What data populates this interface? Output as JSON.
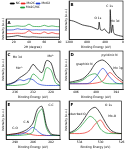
{
  "chart_data": [
    {
      "type": "line",
      "title": "A",
      "x_label": "2θ (degree)",
      "y_label": "Intensity (a.u.)",
      "x": [
        10,
        15,
        20,
        25,
        30,
        35,
        40,
        45,
        50,
        55,
        60,
        65,
        70,
        75,
        80
      ],
      "series": [
        {
          "name": "NC",
          "color": "#000000",
          "values": [
            12,
            13,
            15,
            18,
            14,
            12,
            11,
            12,
            11,
            10,
            10,
            10,
            10,
            10,
            10
          ]
        },
        {
          "name": "Mo2C",
          "color": "#e8251f",
          "values": [
            28,
            28,
            29,
            30,
            29,
            31,
            42,
            30,
            29,
            28,
            36,
            28,
            33,
            28,
            27
          ]
        },
        {
          "name": "MoO2",
          "color": "#2040d0",
          "values": [
            46,
            46,
            47,
            52,
            48,
            50,
            47,
            46,
            47,
            46,
            47,
            46,
            46,
            46,
            46
          ]
        },
        {
          "name": "Mo2C/NC",
          "color": "#1e9e3a",
          "values": [
            63,
            63,
            64,
            66,
            64,
            65,
            74,
            64,
            63,
            63,
            69,
            63,
            66,
            63,
            62
          ]
        }
      ],
      "xlim": [
        10,
        80
      ],
      "xticks": [
        20,
        40,
        60,
        80
      ],
      "ylim": [
        0,
        100
      ],
      "legend": "top",
      "grid": false,
      "tick_labels": "x"
    },
    {
      "type": "line",
      "title": "B",
      "x_label": "Binding Energy (eV)",
      "y_label": "Intensity (a.u.)",
      "x": [
        1200,
        1100,
        1000,
        900,
        800,
        700,
        600,
        550,
        531,
        500,
        450,
        413,
        400,
        350,
        300,
        284,
        260,
        230,
        200,
        100,
        0
      ],
      "series": [
        {
          "color": "#000000",
          "values": [
            40,
            38,
            34,
            30,
            28,
            26,
            22,
            21,
            36,
            20,
            19,
            22,
            20,
            15,
            13,
            62,
            14,
            30,
            12,
            8,
            6
          ]
        }
      ],
      "annotations": [
        {
          "text": "O 1s",
          "x": 560,
          "y": 45
        },
        {
          "text": "C 1s",
          "x": 300,
          "y": 70
        },
        {
          "text": "Mo 3d",
          "x": 180,
          "y": 38
        }
      ],
      "xlim": [
        1200,
        0
      ],
      "xticks": [
        1200,
        800,
        400,
        0
      ],
      "ylim": [
        0,
        80
      ],
      "grid": false,
      "tick_labels": "x"
    },
    {
      "type": "line",
      "title": "C",
      "x_label": "Binding Energy (eV)",
      "y_label": "Intensity (a.u.)",
      "x": [
        238,
        237,
        236,
        235,
        234,
        233,
        232,
        231,
        230,
        229,
        228,
        227,
        226
      ],
      "series": [
        {
          "color": "#000000",
          "values": [
            10,
            12,
            16,
            24,
            30,
            38,
            52,
            42,
            35,
            60,
            55,
            25,
            12
          ]
        },
        {
          "color": "#1e9e3a",
          "values": [
            8,
            8,
            8,
            9,
            10,
            14,
            32,
            25,
            18,
            45,
            40,
            14,
            8
          ]
        },
        {
          "color": "#2040d0",
          "values": [
            9,
            11,
            15,
            20,
            18,
            22,
            20,
            12,
            9,
            8,
            8,
            8,
            8
          ]
        }
      ],
      "annotations": [
        {
          "text": "Mo 3d",
          "x": 235.5,
          "y": 68
        },
        {
          "text": "Mo²⁺",
          "x": 228,
          "y": 70
        },
        {
          "text": "Mo⁶⁺",
          "x": 235,
          "y": 45
        }
      ],
      "xlim": [
        238,
        226
      ],
      "xticks": [
        236,
        232,
        228
      ],
      "ylim": [
        0,
        80
      ],
      "grid": false,
      "tick_labels": "x"
    },
    {
      "type": "line",
      "title": "D",
      "x_label": "Binding Energy (eV)",
      "y_label": "Intensity (a.u.)",
      "x": [
        408,
        406,
        404,
        402,
        400,
        398,
        396,
        394,
        392
      ],
      "series": [
        {
          "color": "#000000",
          "values": [
            10,
            12,
            15,
            24,
            38,
            42,
            34,
            20,
            12
          ]
        },
        {
          "color": "#1e9e3a",
          "values": [
            9,
            10,
            13,
            20,
            22,
            10,
            8,
            8,
            8
          ]
        },
        {
          "color": "#2040d0",
          "values": [
            8,
            8,
            8,
            9,
            18,
            30,
            18,
            9,
            8
          ]
        },
        {
          "color": "#e8251f",
          "values": [
            8,
            8,
            8,
            8,
            9,
            12,
            24,
            16,
            9
          ]
        }
      ],
      "annotations": [
        {
          "text": "graphitic N",
          "x": 403.5,
          "y": 36
        },
        {
          "text": "pyridinic N",
          "x": 396,
          "y": 49
        },
        {
          "text": "Mo 3p",
          "x": 393.5,
          "y": 30
        }
      ],
      "xlim": [
        408,
        392
      ],
      "xticks": [
        406,
        400,
        394
      ],
      "ylim": [
        0,
        55
      ],
      "grid": false,
      "tick_labels": "x"
    },
    {
      "type": "line",
      "title": "E",
      "x_label": "Binding Energy (eV)",
      "y_label": "Intensity (a.u.)",
      "x": [
        292,
        291,
        290,
        289,
        288,
        287,
        286,
        285,
        284,
        283,
        282,
        281,
        280
      ],
      "series": [
        {
          "color": "#000000",
          "values": [
            8,
            9,
            10,
            12,
            15,
            20,
            30,
            55,
            60,
            25,
            10,
            8,
            7
          ]
        },
        {
          "color": "#1e9e3a",
          "values": [
            7,
            7,
            7,
            7,
            8,
            9,
            14,
            45,
            55,
            20,
            8,
            7,
            7
          ]
        },
        {
          "color": "#2040d0",
          "values": [
            7,
            7,
            8,
            9,
            11,
            16,
            22,
            15,
            9,
            7,
            7,
            7,
            7
          ]
        },
        {
          "color": "#e8251f",
          "values": [
            8,
            9,
            10,
            11,
            12,
            10,
            8,
            7,
            7,
            7,
            7,
            7,
            7
          ]
        }
      ],
      "annotations": [
        {
          "text": "C-C",
          "x": 282,
          "y": 62
        },
        {
          "text": "C-N",
          "x": 287.5,
          "y": 32
        },
        {
          "text": "C-O",
          "x": 290,
          "y": 20
        }
      ],
      "xlim": [
        292,
        280
      ],
      "xticks": [
        290,
        286,
        282
      ],
      "ylim": [
        0,
        70
      ],
      "grid": false,
      "tick_labels": "x"
    },
    {
      "type": "line",
      "title": "F",
      "x_label": "Binding Energy (eV)",
      "y_label": "Intensity (a.u.)",
      "x": [
        536,
        535,
        534,
        533,
        532,
        531,
        530,
        529,
        528,
        527,
        526
      ],
      "series": [
        {
          "color": "#000000",
          "values": [
            10,
            14,
            22,
            34,
            46,
            50,
            40,
            25,
            14,
            10,
            9
          ]
        },
        {
          "color": "#1e9e3a",
          "values": [
            9,
            12,
            18,
            28,
            36,
            30,
            16,
            10,
            9,
            9,
            9
          ]
        },
        {
          "color": "#e8251f",
          "values": [
            9,
            9,
            9,
            10,
            14,
            24,
            30,
            18,
            11,
            9,
            9
          ]
        }
      ],
      "annotations": [
        {
          "text": "O 1s",
          "x": 528.5,
          "y": 54
        },
        {
          "text": "adsorbed O",
          "x": 534.5,
          "y": 40
        },
        {
          "text": "Mo-O",
          "x": 527.8,
          "y": 36
        }
      ],
      "xlim": [
        536,
        526
      ],
      "xticks": [
        534,
        530,
        526
      ],
      "ylim": [
        0,
        60
      ],
      "grid": false,
      "tick_labels": "x"
    }
  ]
}
